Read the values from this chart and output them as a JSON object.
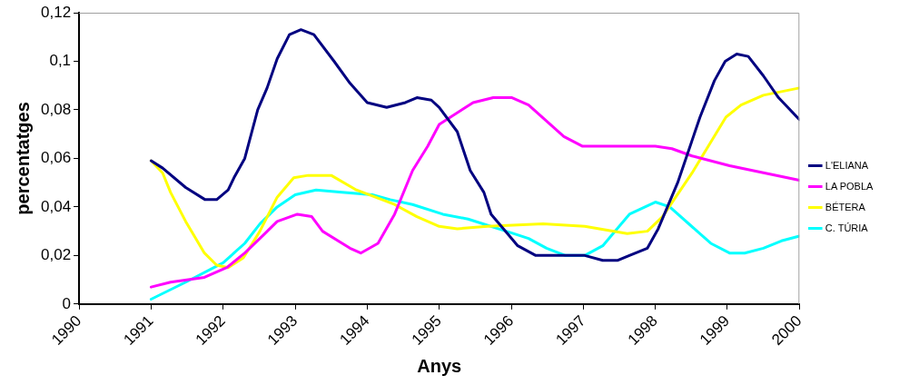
{
  "chart_data": {
    "type": "line",
    "xlabel": "Anys",
    "ylabel": "percentatges",
    "xlim": [
      1990,
      2000
    ],
    "xticks": [
      1990,
      1991,
      1992,
      1993,
      1994,
      1995,
      1996,
      1997,
      1998,
      1999,
      2000
    ],
    "ylim": [
      0,
      0.12
    ],
    "yticks": [
      0,
      {
        "value": 0.02,
        "label": "0,02"
      },
      {
        "value": 0.04,
        "label": "0,04"
      },
      {
        "value": 0.06,
        "label": "0,06"
      },
      {
        "value": 0.08,
        "label": "0,08"
      },
      {
        "value": 0.1,
        "label": "0,1"
      },
      {
        "value": 0.12,
        "label": "0,12"
      }
    ],
    "grid": false,
    "legend": "right",
    "marker": "none",
    "line_style": "solid",
    "series": [
      {
        "name": "L'ELIANA",
        "color": "#000080",
        "x": [
          1991.0,
          1991.16,
          1991.48,
          1991.75,
          1991.91,
          1992.07,
          1992.15,
          1992.3,
          1992.48,
          1992.61,
          1992.75,
          1992.92,
          1993.08,
          1993.26,
          1993.54,
          1993.76,
          1994.0,
          1994.27,
          1994.53,
          1994.69,
          1994.89,
          1995.0,
          1995.25,
          1995.43,
          1995.62,
          1995.72,
          1996.09,
          1996.34,
          1997.02,
          1997.27,
          1997.48,
          1997.64,
          1997.89,
          1998.04,
          1998.31,
          1998.62,
          1998.82,
          1998.97,
          1999.13,
          1999.29,
          1999.5,
          1999.71,
          2000.0
        ],
        "values": [
          0.059,
          0.056,
          0.048,
          0.043,
          0.043,
          0.047,
          0.052,
          0.06,
          0.08,
          0.089,
          0.101,
          0.111,
          0.113,
          0.111,
          0.1,
          0.091,
          0.083,
          0.081,
          0.083,
          0.085,
          0.084,
          0.081,
          0.071,
          0.055,
          0.046,
          0.037,
          0.024,
          0.02,
          0.02,
          0.018,
          0.018,
          0.02,
          0.023,
          0.031,
          0.05,
          0.077,
          0.092,
          0.1,
          0.103,
          0.102,
          0.094,
          0.085,
          0.076
        ]
      },
      {
        "name": "LA POBLA",
        "color": "#ff00ff",
        "x": [
          1991.0,
          1991.27,
          1991.74,
          1992.05,
          1992.3,
          1992.51,
          1992.75,
          1993.03,
          1993.23,
          1993.38,
          1993.76,
          1993.91,
          1994.15,
          1994.38,
          1994.63,
          1994.84,
          1995.0,
          1995.47,
          1995.75,
          1996.01,
          1996.24,
          1996.73,
          1996.99,
          1997.25,
          1998.0,
          1998.23,
          1998.51,
          1999.03,
          2000.0
        ],
        "values": [
          0.007,
          0.009,
          0.011,
          0.015,
          0.021,
          0.027,
          0.034,
          0.037,
          0.036,
          0.03,
          0.023,
          0.021,
          0.025,
          0.037,
          0.055,
          0.065,
          0.074,
          0.083,
          0.085,
          0.085,
          0.082,
          0.069,
          0.065,
          0.065,
          0.065,
          0.064,
          0.061,
          0.057,
          0.051
        ]
      },
      {
        "name": "BÉTERA",
        "color": "#ffff00",
        "x": [
          1991.0,
          1991.16,
          1991.27,
          1991.48,
          1991.74,
          1991.91,
          1992.07,
          1992.28,
          1992.51,
          1992.75,
          1992.98,
          1993.18,
          1993.5,
          1993.85,
          1994.38,
          1994.69,
          1995.0,
          1995.25,
          1995.67,
          1996.44,
          1997.02,
          1997.61,
          1997.89,
          1998.1,
          1998.51,
          1998.98,
          1999.19,
          1999.5,
          2000.0
        ],
        "values": [
          0.059,
          0.054,
          0.046,
          0.034,
          0.021,
          0.016,
          0.015,
          0.019,
          0.03,
          0.044,
          0.052,
          0.053,
          0.053,
          0.047,
          0.041,
          0.036,
          0.032,
          0.031,
          0.032,
          0.033,
          0.032,
          0.029,
          0.03,
          0.036,
          0.054,
          0.077,
          0.082,
          0.086,
          0.089
        ]
      },
      {
        "name": "C. TÚRIA",
        "color": "#00ffff",
        "x": [
          1991.0,
          1991.48,
          1992.0,
          1992.15,
          1992.3,
          1992.51,
          1992.75,
          1993.0,
          1993.29,
          1993.65,
          1994.07,
          1994.32,
          1994.63,
          1995.05,
          1995.4,
          1995.93,
          1996.24,
          1996.49,
          1996.75,
          1997.02,
          1997.27,
          1997.64,
          1998.0,
          1998.2,
          1998.77,
          1999.03,
          1999.24,
          1999.5,
          1999.75,
          2000.0
        ],
        "values": [
          0.002,
          0.009,
          0.017,
          0.021,
          0.025,
          0.033,
          0.04,
          0.045,
          0.047,
          0.046,
          0.045,
          0.043,
          0.041,
          0.037,
          0.035,
          0.03,
          0.027,
          0.023,
          0.02,
          0.02,
          0.024,
          0.037,
          0.042,
          0.04,
          0.025,
          0.021,
          0.021,
          0.023,
          0.026,
          0.028
        ]
      }
    ]
  }
}
